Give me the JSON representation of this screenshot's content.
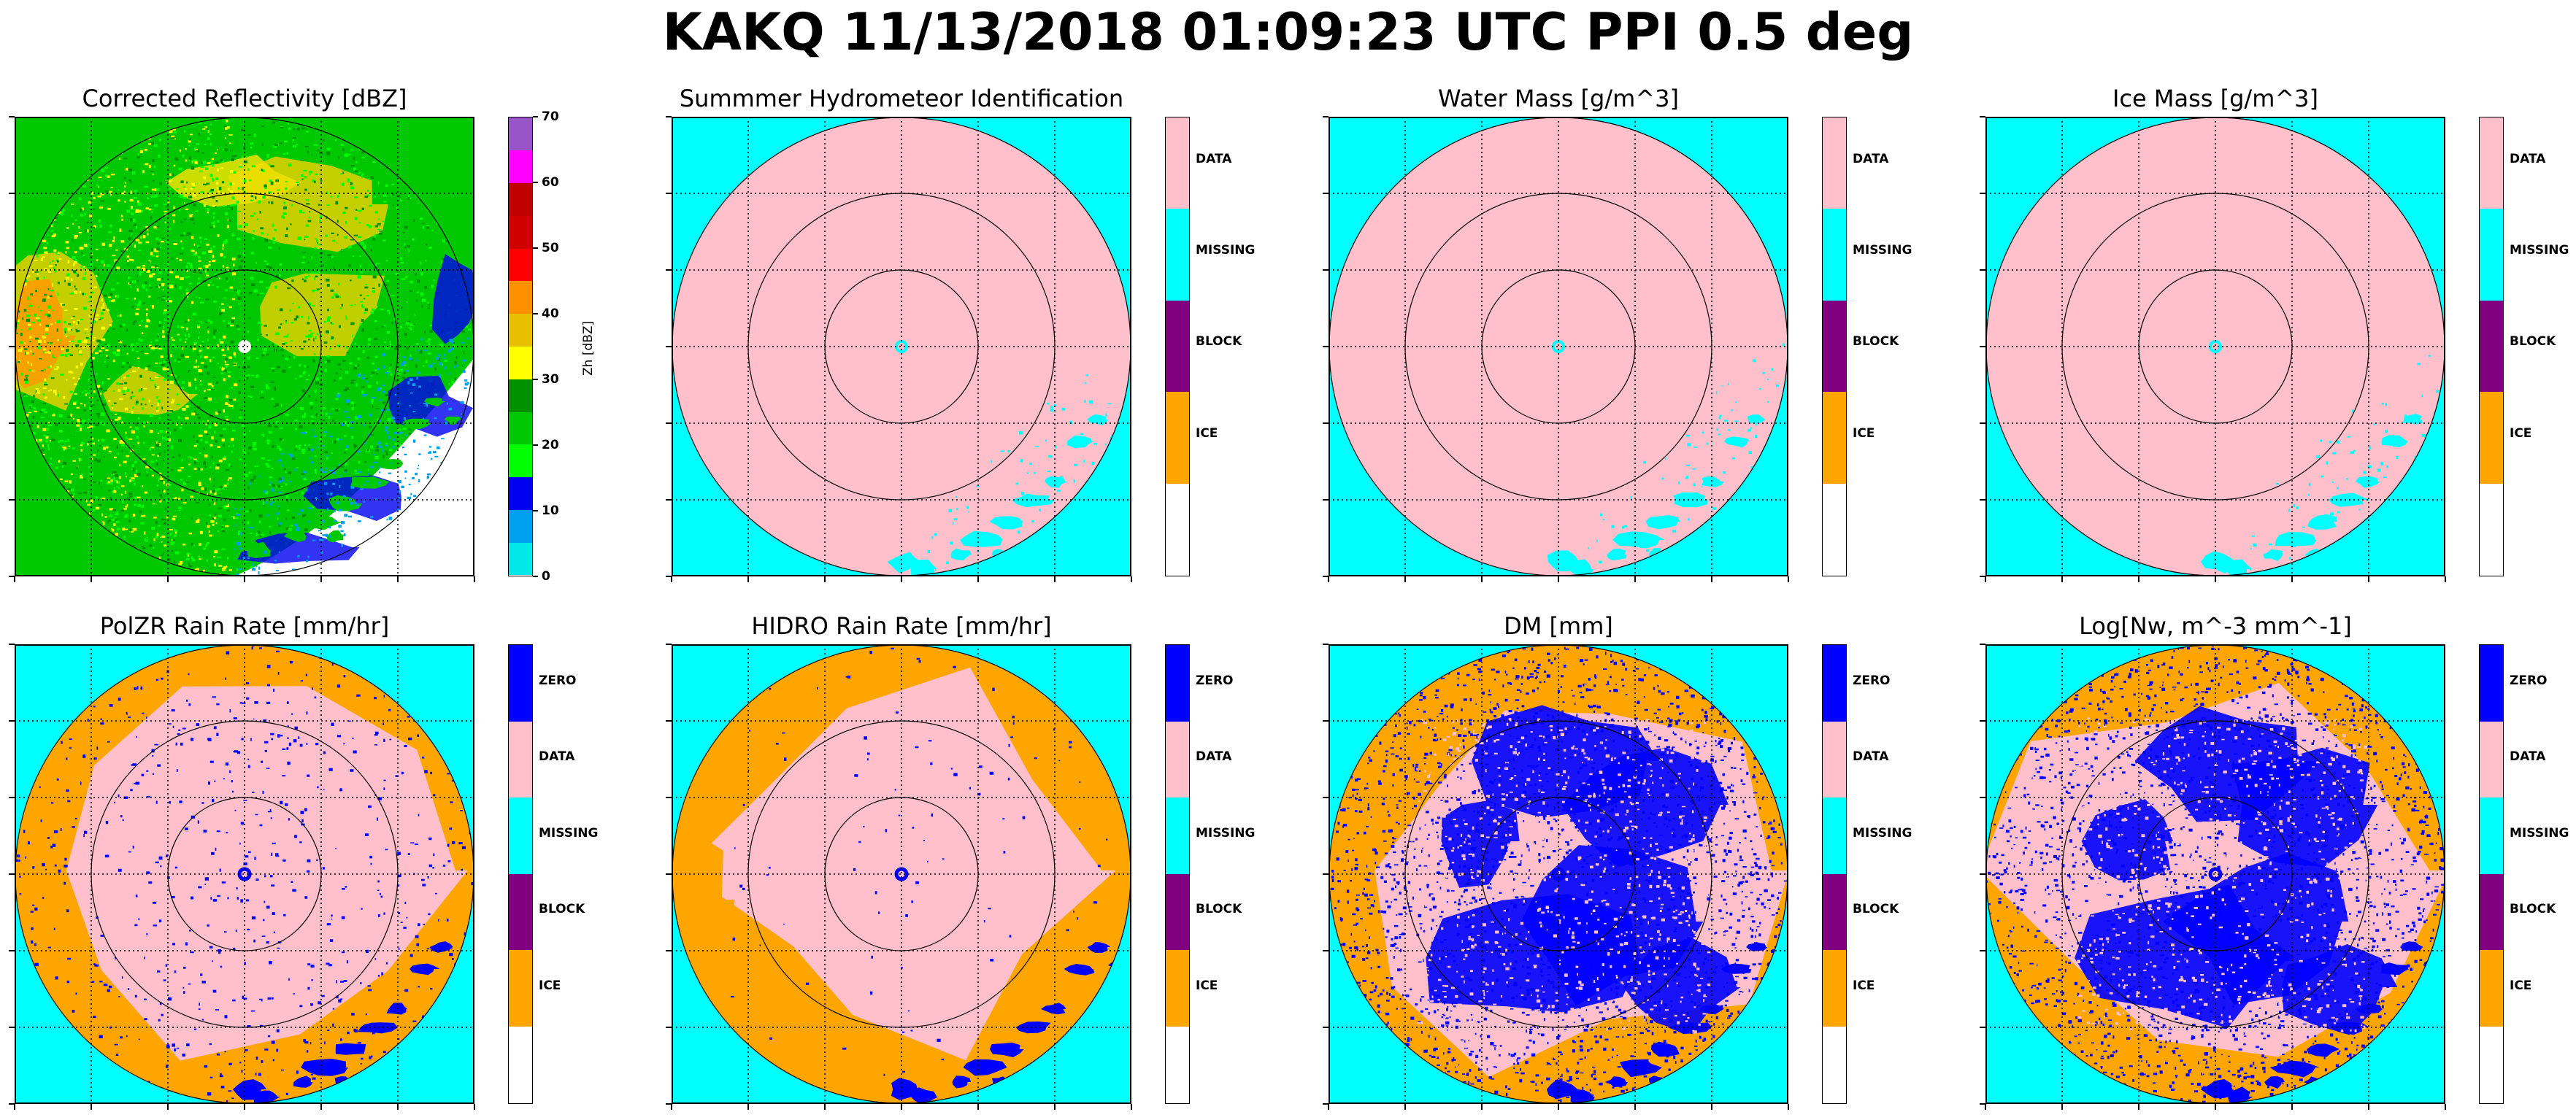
{
  "figure": {
    "suptitle": "KAKQ 11/13/2018 01:09:23 UTC PPI 0.5 deg"
  },
  "colors": {
    "DATA": "#ffc0cb",
    "MISSING": "#00ffff",
    "BLOCK": "#800080",
    "ICE": "#ffa500",
    "ZERO": "#0000ff",
    "NONE": "#ffffff"
  },
  "chart_data": [
    {
      "type": "heatmap",
      "title": "Corrected Reflectivity [dBZ]",
      "colorbar": {
        "label": "Zh [dBZ]",
        "ticks": [
          "0",
          "10",
          "20",
          "30",
          "40",
          "50",
          "60",
          "70"
        ],
        "colors": [
          "#00e8e8",
          "#00a0f0",
          "#0000f0",
          "#00ff00",
          "#00c800",
          "#009000",
          "#ffff00",
          "#e8c000",
          "#ff9000",
          "#ff0000",
          "#d00000",
          "#c00000",
          "#ff00ff",
          "#9855c8"
        ],
        "range": [
          0,
          70
        ]
      },
      "pattern": "reflectivity"
    },
    {
      "type": "heatmap",
      "title": "Summmer Hydrometeor Identification",
      "colorbar": {
        "categories": [
          "DATA",
          "MISSING",
          "BLOCK",
          "ICE",
          ""
        ]
      },
      "pattern": "mask"
    },
    {
      "type": "heatmap",
      "title": "Water Mass [g/m^3]",
      "colorbar": {
        "categories": [
          "DATA",
          "MISSING",
          "BLOCK",
          "ICE",
          ""
        ]
      },
      "pattern": "mask"
    },
    {
      "type": "heatmap",
      "title": "Ice Mass [g/m^3]",
      "colorbar": {
        "categories": [
          "DATA",
          "MISSING",
          "BLOCK",
          "ICE",
          ""
        ]
      },
      "pattern": "mask"
    },
    {
      "type": "heatmap",
      "title": "PolZR Rain Rate [mm/hr]",
      "colorbar": {
        "categories": [
          "ZERO",
          "DATA",
          "MISSING",
          "BLOCK",
          "ICE",
          ""
        ]
      },
      "pattern": "rain"
    },
    {
      "type": "heatmap",
      "title": "HIDRO Rain Rate [mm/hr]",
      "colorbar": {
        "categories": [
          "ZERO",
          "DATA",
          "MISSING",
          "BLOCK",
          "ICE",
          ""
        ]
      },
      "pattern": "rain2"
    },
    {
      "type": "heatmap",
      "title": "DM [mm]",
      "colorbar": {
        "categories": [
          "ZERO",
          "DATA",
          "MISSING",
          "BLOCK",
          "ICE",
          ""
        ]
      },
      "pattern": "dsd"
    },
    {
      "type": "heatmap",
      "title": "Log[Nw, m^-3 mm^-1]",
      "colorbar": {
        "categories": [
          "ZERO",
          "DATA",
          "MISSING",
          "BLOCK",
          "ICE",
          ""
        ]
      },
      "pattern": "dsd"
    }
  ]
}
